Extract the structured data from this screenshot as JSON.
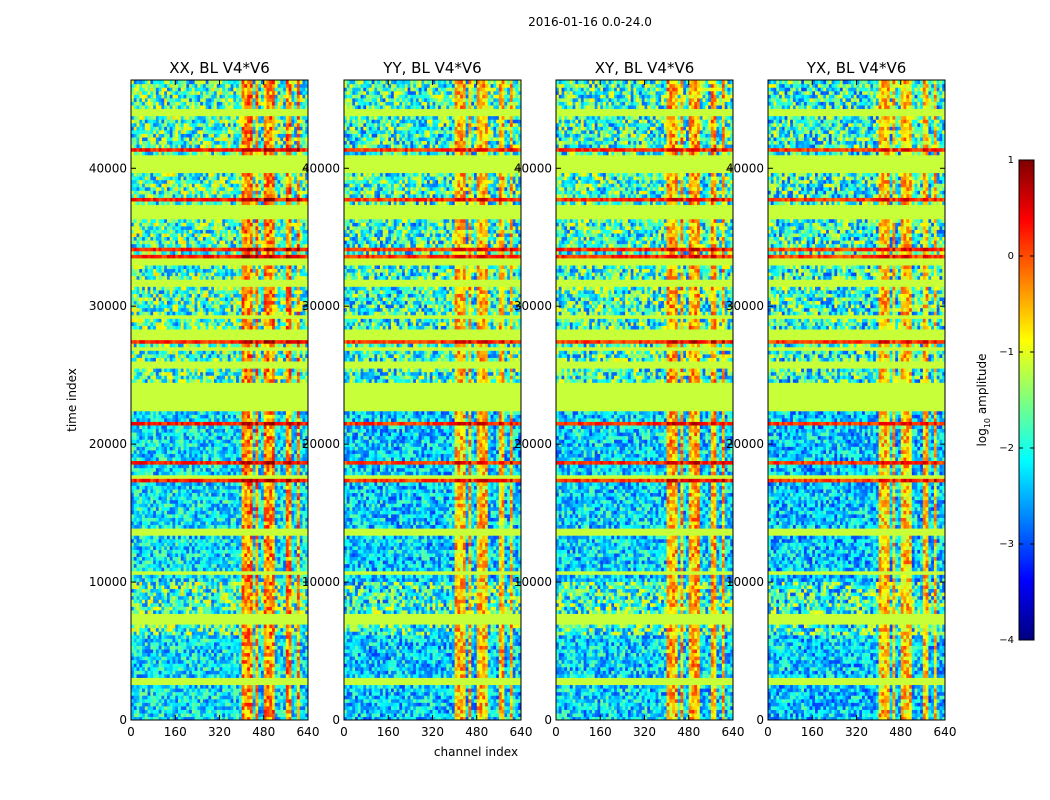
{
  "chart_data": {
    "type": "heatmap",
    "suptitle": "2016-01-16 0.0-24.0",
    "xlabel": "channel index",
    "ylabel": "time index",
    "xlim": [
      0,
      640
    ],
    "ylim": [
      0,
      46400
    ],
    "x_ticks": [
      0,
      160,
      320,
      480,
      640
    ],
    "y_ticks": [
      0,
      10000,
      20000,
      30000,
      40000
    ],
    "panels": [
      {
        "name": "XX",
        "title": "XX, BL V4*V6"
      },
      {
        "name": "YY",
        "title": "YY, BL V4*V6"
      },
      {
        "name": "XY",
        "title": "XY, BL V4*V6"
      },
      {
        "name": "YX",
        "title": "YX, BL V4*V6"
      }
    ],
    "colorbar": {
      "label": "log10 amplitude",
      "label_main": "log",
      "label_sub": "10",
      "label_tail": " amplitude",
      "range": [
        -4,
        1
      ],
      "ticks": [
        {
          "value": 1,
          "label": "1"
        },
        {
          "value": 0,
          "label": "0"
        },
        {
          "value": -1,
          "label": "−1"
        },
        {
          "value": -2,
          "label": "−2"
        },
        {
          "value": -3,
          "label": "−3"
        },
        {
          "value": -4,
          "label": "−4"
        }
      ],
      "colors": [
        "#00007f",
        "#0000ff",
        "#007fff",
        "#00ffff",
        "#7fff7f",
        "#ffff00",
        "#ff7f00",
        "#ff0000",
        "#7f0000"
      ]
    },
    "flag_value": -1.15,
    "flagged_time_ranges": [
      [
        22300,
        24400
      ],
      [
        39700,
        41000
      ],
      [
        36300,
        37500
      ],
      [
        27700,
        28300
      ],
      [
        25500,
        26100
      ],
      [
        7000,
        7800
      ],
      [
        2700,
        3100
      ],
      [
        31500,
        31900
      ],
      [
        43900,
        44300
      ],
      [
        33000,
        33400
      ],
      [
        13500,
        13900
      ],
      [
        17600,
        17800
      ],
      [
        10600,
        10800
      ],
      [
        26700,
        27000
      ],
      [
        29100,
        29400
      ]
    ],
    "hot_channel_ranges": [
      [
        400,
        440
      ],
      [
        455,
        465
      ],
      [
        480,
        520
      ],
      [
        560,
        580
      ],
      [
        600,
        612
      ]
    ],
    "quiet_time_ranges": [
      [
        0,
        6300
      ],
      [
        10000,
        22300
      ]
    ]
  }
}
